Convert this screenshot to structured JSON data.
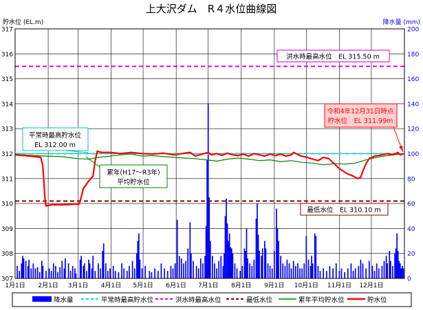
{
  "chart_data": {
    "type": "line",
    "title": "上大沢ダム　R４水位曲線図",
    "ylabel_left": "貯水位 (EL.m)",
    "ylabel_right": "降水量 (mm)",
    "y_left_range": [
      307,
      317
    ],
    "y_left_ticks": [
      "307",
      "308",
      "309",
      "310",
      "311",
      "312",
      "313",
      "314",
      "315",
      "316",
      "317"
    ],
    "y_right_range": [
      0,
      200
    ],
    "y_right_ticks": [
      "0",
      "20",
      "40",
      "60",
      "80",
      "100",
      "120",
      "140",
      "160",
      "180",
      "200"
    ],
    "x_range": [
      1,
      366
    ],
    "x_ticks": [
      {
        "day": 1,
        "label": "1月1日"
      },
      {
        "day": 32,
        "label": "2月1日"
      },
      {
        "day": 60,
        "label": "3月1日"
      },
      {
        "day": 91,
        "label": "4月1日"
      },
      {
        "day": 121,
        "label": "5月1日"
      },
      {
        "day": 152,
        "label": "6月1日"
      },
      {
        "day": 182,
        "label": "7月1日"
      },
      {
        "day": 213,
        "label": "8月1日"
      },
      {
        "day": 244,
        "label": "9月1日"
      },
      {
        "day": 274,
        "label": "10月1日"
      },
      {
        "day": 305,
        "label": "11月1日"
      },
      {
        "day": 335,
        "label": "12月1日"
      }
    ],
    "grid": true,
    "legend_position": "bottom",
    "levels": {
      "normal_max": {
        "value": 312.0,
        "color": "#00e0e0"
      },
      "flood_max": {
        "value": 315.5,
        "color": "#e000e0"
      },
      "min": {
        "value": 310.1,
        "color": "#800000"
      }
    },
    "annotations": {
      "normal_max_line1": "平常時最高貯水位",
      "normal_max_line2": "EL 312.00 m",
      "flood_max": "洪水時最高水位　EL 315.50 m",
      "min": "最低水位　EL 310.10 m",
      "avg_line1": "累年(H17～R3年)",
      "avg_line2": "平均貯水位",
      "current_line1": "令和4年12月31日時点",
      "current_line2": "貯水位　EL 311.99m"
    },
    "legend": {
      "rain": "降水量",
      "normal_max": "平常時最高貯水位",
      "flood_max": "洪水時最高水位",
      "min": "最低水位",
      "avg": "累年平均貯水位",
      "level": "貯水位"
    },
    "colors": {
      "level": "#ff0000",
      "avg": "#008000",
      "rain": "#0000ff",
      "right_axis": "#0000ff"
    },
    "level_series": [
      [
        1,
        311.95
      ],
      [
        10,
        311.92
      ],
      [
        20,
        311.88
      ],
      [
        25,
        311.85
      ],
      [
        27,
        311.5
      ],
      [
        29,
        310.2
      ],
      [
        30,
        309.9
      ],
      [
        35,
        309.95
      ],
      [
        45,
        309.95
      ],
      [
        56,
        309.97
      ],
      [
        61,
        309.98
      ],
      [
        62,
        310.1
      ],
      [
        65,
        310.6
      ],
      [
        70,
        310.9
      ],
      [
        74,
        311.1
      ],
      [
        76,
        311.7
      ],
      [
        78,
        312.1
      ],
      [
        82,
        312.05
      ],
      [
        90,
        312.05
      ],
      [
        100,
        312.0
      ],
      [
        110,
        312.05
      ],
      [
        120,
        312.0
      ],
      [
        130,
        311.98
      ],
      [
        140,
        312.02
      ],
      [
        150,
        311.95
      ],
      [
        160,
        312.02
      ],
      [
        165,
        312.05
      ],
      [
        170,
        311.9
      ],
      [
        178,
        312.0
      ],
      [
        182,
        312.05
      ],
      [
        185,
        311.95
      ],
      [
        190,
        312.0
      ],
      [
        195,
        311.93
      ],
      [
        200,
        312.02
      ],
      [
        205,
        311.95
      ],
      [
        210,
        311.92
      ],
      [
        215,
        311.98
      ],
      [
        220,
        311.9
      ],
      [
        225,
        312.0
      ],
      [
        230,
        311.95
      ],
      [
        235,
        311.9
      ],
      [
        240,
        311.98
      ],
      [
        245,
        311.92
      ],
      [
        250,
        311.98
      ],
      [
        255,
        311.9
      ],
      [
        260,
        311.95
      ],
      [
        262,
        312.05
      ],
      [
        268,
        311.92
      ],
      [
        275,
        311.85
      ],
      [
        280,
        311.78
      ],
      [
        285,
        311.72
      ],
      [
        290,
        311.85
      ],
      [
        295,
        311.8
      ],
      [
        300,
        311.6
      ],
      [
        305,
        311.4
      ],
      [
        312,
        311.2
      ],
      [
        318,
        311.1
      ],
      [
        322,
        311.0
      ],
      [
        325,
        311.05
      ],
      [
        327,
        311.3
      ],
      [
        330,
        311.6
      ],
      [
        333,
        311.8
      ],
      [
        338,
        311.9
      ],
      [
        345,
        311.95
      ],
      [
        350,
        312.0
      ],
      [
        355,
        311.95
      ],
      [
        360,
        312.05
      ],
      [
        362,
        311.95
      ],
      [
        365,
        311.99
      ]
    ],
    "avg_series": [
      [
        1,
        311.97
      ],
      [
        15,
        311.93
      ],
      [
        30,
        311.9
      ],
      [
        45,
        311.88
      ],
      [
        55,
        311.82
      ],
      [
        60,
        311.8
      ],
      [
        70,
        311.78
      ],
      [
        80,
        311.85
      ],
      [
        90,
        311.9
      ],
      [
        100,
        311.95
      ],
      [
        110,
        311.98
      ],
      [
        120,
        311.9
      ],
      [
        130,
        311.92
      ],
      [
        140,
        311.88
      ],
      [
        150,
        311.85
      ],
      [
        160,
        311.82
      ],
      [
        170,
        311.8
      ],
      [
        180,
        311.75
      ],
      [
        190,
        311.7
      ],
      [
        200,
        311.78
      ],
      [
        210,
        311.82
      ],
      [
        220,
        311.78
      ],
      [
        230,
        311.72
      ],
      [
        240,
        311.75
      ],
      [
        250,
        311.68
      ],
      [
        260,
        311.72
      ],
      [
        270,
        311.65
      ],
      [
        280,
        311.62
      ],
      [
        290,
        311.55
      ],
      [
        300,
        311.6
      ],
      [
        310,
        311.58
      ],
      [
        320,
        311.62
      ],
      [
        330,
        311.75
      ],
      [
        340,
        311.85
      ],
      [
        350,
        311.92
      ],
      [
        360,
        311.97
      ],
      [
        365,
        311.98
      ]
    ],
    "rain_series": [
      [
        3,
        10
      ],
      [
        5,
        6
      ],
      [
        7,
        12
      ],
      [
        8,
        18
      ],
      [
        9,
        16
      ],
      [
        11,
        14
      ],
      [
        13,
        10
      ],
      [
        14,
        15
      ],
      [
        16,
        8
      ],
      [
        18,
        12
      ],
      [
        20,
        8
      ],
      [
        22,
        9
      ],
      [
        24,
        5
      ],
      [
        26,
        14
      ],
      [
        27,
        10
      ],
      [
        30,
        6
      ],
      [
        33,
        8
      ],
      [
        35,
        6
      ],
      [
        37,
        12
      ],
      [
        39,
        10
      ],
      [
        41,
        5
      ],
      [
        43,
        9
      ],
      [
        45,
        14
      ],
      [
        47,
        8
      ],
      [
        48,
        16
      ],
      [
        51,
        12
      ],
      [
        53,
        6
      ],
      [
        55,
        10
      ],
      [
        57,
        8
      ],
      [
        58,
        4
      ],
      [
        62,
        15
      ],
      [
        63,
        18
      ],
      [
        65,
        10
      ],
      [
        66,
        12
      ],
      [
        68,
        6
      ],
      [
        70,
        15
      ],
      [
        71,
        12
      ],
      [
        73,
        8
      ],
      [
        74,
        18
      ],
      [
        76,
        6
      ],
      [
        79,
        12
      ],
      [
        81,
        8
      ],
      [
        83,
        22
      ],
      [
        84,
        28
      ],
      [
        86,
        12
      ],
      [
        88,
        6
      ],
      [
        90,
        8
      ],
      [
        93,
        10
      ],
      [
        95,
        6
      ],
      [
        98,
        5
      ],
      [
        101,
        12
      ],
      [
        103,
        8
      ],
      [
        106,
        6
      ],
      [
        108,
        10
      ],
      [
        111,
        14
      ],
      [
        113,
        8
      ],
      [
        115,
        20
      ],
      [
        116,
        30
      ],
      [
        117,
        36
      ],
      [
        118,
        15
      ],
      [
        120,
        8
      ],
      [
        123,
        10
      ],
      [
        127,
        6
      ],
      [
        129,
        5
      ],
      [
        132,
        8
      ],
      [
        135,
        6
      ],
      [
        138,
        12
      ],
      [
        141,
        8
      ],
      [
        144,
        6
      ],
      [
        147,
        10
      ],
      [
        149,
        8
      ],
      [
        151,
        12
      ],
      [
        153,
        47
      ],
      [
        155,
        18
      ],
      [
        157,
        16
      ],
      [
        159,
        12
      ],
      [
        161,
        14
      ],
      [
        163,
        24
      ],
      [
        165,
        45
      ],
      [
        166,
        20
      ],
      [
        168,
        14
      ],
      [
        171,
        10
      ],
      [
        173,
        8
      ],
      [
        175,
        16
      ],
      [
        177,
        12
      ],
      [
        179,
        18
      ],
      [
        180,
        42
      ],
      [
        181,
        95
      ],
      [
        182,
        140
      ],
      [
        183,
        65
      ],
      [
        184,
        30
      ],
      [
        186,
        18
      ],
      [
        188,
        12
      ],
      [
        190,
        8
      ],
      [
        192,
        14
      ],
      [
        194,
        18
      ],
      [
        196,
        10
      ],
      [
        197,
        20
      ],
      [
        198,
        50
      ],
      [
        199,
        64
      ],
      [
        200,
        44
      ],
      [
        201,
        30
      ],
      [
        202,
        36
      ],
      [
        203,
        25
      ],
      [
        204,
        24
      ],
      [
        205,
        20
      ],
      [
        207,
        12
      ],
      [
        209,
        8
      ],
      [
        212,
        6
      ],
      [
        214,
        10
      ],
      [
        216,
        24
      ],
      [
        217,
        22
      ],
      [
        218,
        40
      ],
      [
        219,
        16
      ],
      [
        221,
        12
      ],
      [
        223,
        10
      ],
      [
        225,
        15
      ],
      [
        227,
        48
      ],
      [
        228,
        60
      ],
      [
        229,
        35
      ],
      [
        230,
        22
      ],
      [
        232,
        18
      ],
      [
        233,
        24
      ],
      [
        235,
        30
      ],
      [
        236,
        24
      ],
      [
        238,
        12
      ],
      [
        240,
        10
      ],
      [
        242,
        8
      ],
      [
        244,
        22
      ],
      [
        246,
        56
      ],
      [
        247,
        40
      ],
      [
        248,
        30
      ],
      [
        250,
        18
      ],
      [
        252,
        12
      ],
      [
        254,
        10
      ],
      [
        256,
        15
      ],
      [
        258,
        12
      ],
      [
        260,
        8
      ],
      [
        262,
        14
      ],
      [
        264,
        10
      ],
      [
        266,
        12
      ],
      [
        268,
        8
      ],
      [
        270,
        8
      ],
      [
        272,
        12
      ],
      [
        274,
        34
      ],
      [
        276,
        15
      ],
      [
        278,
        10
      ],
      [
        279,
        18
      ],
      [
        280,
        12
      ],
      [
        282,
        36
      ],
      [
        283,
        34
      ],
      [
        285,
        10
      ],
      [
        287,
        6
      ],
      [
        290,
        8
      ],
      [
        293,
        6
      ],
      [
        296,
        10
      ],
      [
        299,
        8
      ],
      [
        302,
        12
      ],
      [
        305,
        6
      ],
      [
        307,
        8
      ],
      [
        310,
        5
      ],
      [
        313,
        8
      ],
      [
        316,
        12
      ],
      [
        318,
        6
      ],
      [
        320,
        8
      ],
      [
        323,
        10
      ],
      [
        325,
        15
      ],
      [
        327,
        12
      ],
      [
        330,
        8
      ],
      [
        333,
        14
      ],
      [
        336,
        10
      ],
      [
        338,
        6
      ],
      [
        340,
        12
      ],
      [
        342,
        8
      ],
      [
        345,
        10
      ],
      [
        347,
        14
      ],
      [
        349,
        18
      ],
      [
        350,
        12
      ],
      [
        352,
        22
      ],
      [
        353,
        14
      ],
      [
        355,
        10
      ],
      [
        357,
        20
      ],
      [
        358,
        24
      ],
      [
        359,
        36
      ],
      [
        360,
        22
      ],
      [
        361,
        14
      ],
      [
        362,
        12
      ],
      [
        363,
        8
      ],
      [
        364,
        10
      ],
      [
        365,
        8
      ]
    ]
  }
}
